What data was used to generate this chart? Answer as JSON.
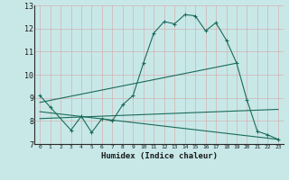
{
  "bg_color": "#c8e8e8",
  "grid_color_major": "#a0c8c8",
  "grid_color_minor": "#b8d8d8",
  "line_color": "#1a6b5a",
  "xlabel": "Humidex (Indice chaleur)",
  "xlim": [
    -0.5,
    23.5
  ],
  "ylim": [
    7,
    13
  ],
  "yticks": [
    7,
    8,
    9,
    10,
    11,
    12,
    13
  ],
  "xticks": [
    0,
    1,
    2,
    3,
    4,
    5,
    6,
    7,
    8,
    9,
    10,
    11,
    12,
    13,
    14,
    15,
    16,
    17,
    18,
    19,
    20,
    21,
    22,
    23
  ],
  "series1_x": [
    0,
    1,
    3,
    4,
    5,
    6,
    7,
    8,
    9,
    10,
    11,
    12,
    13,
    14,
    15,
    16,
    17,
    18,
    19,
    20,
    21,
    22,
    23
  ],
  "series1_y": [
    9.1,
    8.6,
    7.6,
    8.2,
    7.5,
    8.1,
    8.0,
    8.7,
    9.1,
    10.5,
    11.8,
    12.3,
    12.2,
    12.6,
    12.55,
    11.9,
    12.25,
    11.5,
    10.5,
    8.9,
    7.55,
    7.4,
    7.2
  ],
  "series2_x": [
    0,
    19
  ],
  "series2_y": [
    8.8,
    10.5
  ],
  "series3_x": [
    0,
    23
  ],
  "series3_y": [
    8.1,
    8.5
  ],
  "series4_x": [
    0,
    23
  ],
  "series4_y": [
    8.4,
    7.2
  ]
}
